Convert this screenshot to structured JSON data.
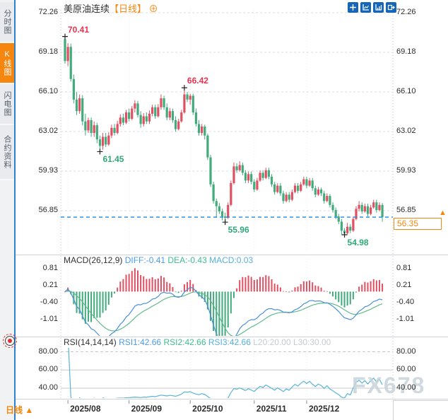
{
  "header": {
    "title": "美原油连续",
    "period_tag": "【日线】",
    "add_icon": "⊕"
  },
  "sidebar": {
    "items": [
      {
        "label": "分时图",
        "selected": false
      },
      {
        "label": "K线图",
        "selected": true
      },
      {
        "label": "闪电图",
        "selected": false
      },
      {
        "label": "合约资料",
        "selected": false
      }
    ]
  },
  "toolbar": {
    "icons": [
      "crosshair",
      "fit-scale",
      "indicator-chart",
      "pop-out"
    ]
  },
  "price_axis": {
    "labels": [
      "72.26",
      "69.18",
      "66.10",
      "63.02",
      "59.93",
      "56.85"
    ],
    "current": "56.35"
  },
  "macd_panel": {
    "title": "MACD(26,12,9)",
    "diff_label": "DIFF:-0.41",
    "dea_label": "DEA:-0.43",
    "macd_label": "MACD:0.03",
    "axis": [
      "0.81",
      "0.21",
      "-0.40",
      "-1.01"
    ]
  },
  "rsi_panel": {
    "title": "RSI(14,14,14)",
    "rsi1_label": "RSI1:42.66",
    "rsi2_label": "RSI2:42.66",
    "rsi3_label": "RSI3:42.66",
    "l20_label": "L20:20.00",
    "l30_label": "L30:30.00",
    "axis": [
      "80.00",
      "60.00",
      "40.00"
    ]
  },
  "bottom_bar": {
    "period": "日线",
    "arrow": "▲",
    "dates": [
      "2025/08",
      "2025/09",
      "2025/10",
      "2025/11",
      "2025/12"
    ]
  },
  "watermark": "FX678",
  "colors": {
    "up": "#e05062",
    "down": "#41ab7c",
    "ann_up": "#e8344e",
    "ann_down": "#2fa878",
    "diff_line": "#4a90d9",
    "dea_line": "#62bb8c",
    "rsi_line": "#58b5d8",
    "accent_orange": "#f5870f",
    "toolbar_blue": "#1565b8",
    "current_line": "#1e88e5"
  },
  "chart_data": {
    "type": "candlestick",
    "title": "美原油连续 日线 (US Crude Oil Continuous, daily)",
    "ohlc_format": [
      "open",
      "high",
      "low",
      "close"
    ],
    "y_axis": {
      "ticks": [
        72.26,
        69.18,
        66.1,
        63.02,
        59.93,
        56.85
      ],
      "min": 53.5,
      "max": 72.26
    },
    "x_axis": {
      "ticks": [
        {
          "label": "2025/08",
          "candle_index": 1
        },
        {
          "label": "2025/09",
          "candle_index": 22
        },
        {
          "label": "2025/10",
          "candle_index": 43
        },
        {
          "label": "2025/11",
          "candle_index": 65
        },
        {
          "label": "2025/12",
          "candle_index": 83
        }
      ]
    },
    "current_price": 56.35,
    "annotations": [
      {
        "text": "70.41",
        "candle_index": 0,
        "kind": "high"
      },
      {
        "text": "61.45",
        "candle_index": 12,
        "kind": "low"
      },
      {
        "text": "66.42",
        "candle_index": 41,
        "kind": "high"
      },
      {
        "text": "55.96",
        "candle_index": 55,
        "kind": "low"
      },
      {
        "text": "54.98",
        "candle_index": 96,
        "kind": "low"
      }
    ],
    "indicators": {
      "macd": {
        "params": [
          26,
          12,
          9
        ],
        "diff": -0.41,
        "dea": -0.43,
        "macd": 0.03,
        "axis_ticks": [
          0.81,
          0.21,
          -0.4,
          -1.01
        ]
      },
      "rsi": {
        "params": [
          14,
          14,
          14
        ],
        "rsi1": 42.66,
        "rsi2": 42.66,
        "rsi3": 42.66,
        "levels": {
          "l20": 20.0,
          "l30": 30.0
        },
        "axis_ticks": [
          80,
          60,
          40
        ]
      }
    },
    "candles": [
      [
        70.2,
        70.41,
        68.3,
        68.5
      ],
      [
        68.5,
        69.9,
        68.1,
        69.6
      ],
      [
        69.6,
        69.85,
        66.9,
        67.1
      ],
      [
        67.1,
        67.45,
        65.2,
        65.5
      ],
      [
        65.5,
        66.1,
        64.3,
        64.6
      ],
      [
        64.6,
        65.9,
        64.4,
        65.6
      ],
      [
        65.6,
        65.85,
        63.5,
        63.8
      ],
      [
        63.8,
        64.4,
        62.7,
        63.1
      ],
      [
        63.1,
        64.1,
        62.9,
        63.9
      ],
      [
        63.9,
        64.1,
        62.6,
        62.9
      ],
      [
        62.9,
        63.8,
        62.6,
        63.5
      ],
      [
        63.5,
        63.7,
        62.1,
        62.4
      ],
      [
        62.4,
        62.7,
        61.45,
        61.9
      ],
      [
        61.9,
        62.9,
        61.6,
        62.6
      ],
      [
        62.6,
        62.9,
        61.8,
        62.0
      ],
      [
        62.0,
        62.95,
        61.9,
        62.7
      ],
      [
        62.7,
        63.55,
        62.5,
        63.3
      ],
      [
        63.3,
        63.6,
        62.7,
        62.9
      ],
      [
        62.9,
        63.85,
        62.8,
        63.6
      ],
      [
        63.6,
        64.35,
        63.4,
        64.1
      ],
      [
        64.1,
        64.4,
        63.5,
        63.7
      ],
      [
        63.7,
        64.7,
        63.6,
        64.5
      ],
      [
        64.5,
        64.8,
        63.8,
        64.0
      ],
      [
        64.0,
        65.0,
        63.9,
        64.8
      ],
      [
        64.8,
        65.45,
        64.5,
        65.2
      ],
      [
        65.2,
        65.4,
        64.1,
        64.3
      ],
      [
        64.3,
        64.6,
        63.3,
        63.6
      ],
      [
        63.6,
        64.45,
        63.4,
        64.2
      ],
      [
        64.2,
        64.5,
        63.6,
        63.8
      ],
      [
        63.8,
        64.65,
        63.6,
        64.4
      ],
      [
        64.4,
        65.1,
        64.2,
        64.9
      ],
      [
        64.9,
        65.1,
        64.0,
        64.2
      ],
      [
        64.2,
        65.15,
        64.1,
        64.9
      ],
      [
        64.9,
        65.9,
        64.7,
        65.6
      ],
      [
        65.6,
        65.8,
        64.7,
        64.9
      ],
      [
        64.9,
        65.2,
        63.9,
        64.1
      ],
      [
        64.1,
        64.85,
        63.9,
        64.6
      ],
      [
        64.6,
        64.8,
        63.7,
        63.9
      ],
      [
        63.9,
        64.2,
        63.0,
        63.2
      ],
      [
        63.2,
        64.0,
        63.1,
        63.8
      ],
      [
        63.8,
        64.7,
        63.7,
        64.5
      ],
      [
        64.5,
        66.42,
        64.4,
        65.9
      ],
      [
        65.9,
        66.1,
        65.3,
        65.5
      ],
      [
        65.5,
        65.95,
        65.1,
        65.8
      ],
      [
        65.8,
        65.95,
        64.3,
        64.5
      ],
      [
        64.5,
        64.8,
        63.4,
        63.6
      ],
      [
        63.6,
        63.9,
        62.7,
        62.9
      ],
      [
        62.9,
        63.6,
        62.7,
        63.4
      ],
      [
        63.4,
        63.55,
        62.4,
        62.7
      ],
      [
        62.7,
        62.85,
        60.8,
        61.0
      ],
      [
        61.0,
        61.2,
        58.7,
        58.9
      ],
      [
        58.9,
        59.1,
        57.4,
        57.6
      ],
      [
        57.6,
        57.8,
        56.3,
        57.2
      ],
      [
        57.2,
        57.45,
        56.6,
        56.8
      ],
      [
        56.8,
        57.0,
        56.1,
        56.4
      ],
      [
        56.4,
        56.7,
        55.96,
        56.3
      ],
      [
        56.3,
        57.5,
        56.2,
        57.3
      ],
      [
        57.3,
        59.2,
        57.2,
        59.0
      ],
      [
        59.0,
        60.6,
        58.9,
        60.3
      ],
      [
        60.3,
        60.55,
        59.8,
        60.0
      ],
      [
        60.0,
        60.7,
        59.9,
        60.4
      ],
      [
        60.4,
        60.6,
        59.6,
        59.8
      ],
      [
        59.8,
        60.0,
        59.0,
        59.2
      ],
      [
        59.2,
        59.9,
        59.0,
        59.7
      ],
      [
        59.7,
        59.9,
        58.9,
        59.1
      ],
      [
        59.1,
        59.3,
        58.3,
        58.5
      ],
      [
        58.5,
        59.4,
        58.4,
        59.2
      ],
      [
        59.2,
        60.0,
        59.1,
        59.8
      ],
      [
        59.8,
        60.0,
        59.2,
        59.4
      ],
      [
        59.4,
        60.2,
        59.3,
        60.0
      ],
      [
        60.0,
        60.2,
        59.3,
        59.5
      ],
      [
        59.5,
        59.7,
        58.7,
        58.9
      ],
      [
        58.9,
        59.1,
        58.1,
        58.3
      ],
      [
        58.3,
        59.0,
        58.2,
        58.8
      ],
      [
        58.8,
        59.0,
        58.0,
        58.2
      ],
      [
        58.2,
        58.4,
        57.4,
        57.6
      ],
      [
        57.6,
        58.3,
        57.5,
        58.1
      ],
      [
        58.1,
        58.3,
        57.5,
        57.7
      ],
      [
        57.7,
        58.5,
        57.6,
        58.3
      ],
      [
        58.3,
        59.0,
        58.2,
        58.8
      ],
      [
        58.8,
        59.0,
        58.2,
        58.4
      ],
      [
        58.4,
        59.1,
        58.3,
        58.9
      ],
      [
        58.9,
        59.5,
        58.8,
        59.3
      ],
      [
        59.3,
        59.5,
        58.6,
        58.8
      ],
      [
        58.8,
        59.4,
        58.7,
        59.2
      ],
      [
        59.2,
        59.4,
        58.4,
        58.6
      ],
      [
        58.6,
        58.8,
        57.9,
        58.1
      ],
      [
        58.1,
        58.7,
        58.0,
        58.5
      ],
      [
        58.5,
        58.65,
        58.0,
        58.2
      ],
      [
        58.2,
        58.4,
        57.4,
        57.6
      ],
      [
        57.6,
        58.2,
        57.5,
        58.0
      ],
      [
        58.0,
        58.15,
        57.1,
        57.3
      ],
      [
        57.3,
        57.5,
        56.7,
        56.9
      ],
      [
        56.9,
        57.1,
        56.2,
        56.4
      ],
      [
        56.4,
        56.6,
        55.8,
        56.0
      ],
      [
        56.0,
        56.2,
        55.0,
        55.3
      ],
      [
        55.3,
        55.5,
        54.98,
        55.1
      ],
      [
        55.1,
        55.9,
        55.0,
        55.6
      ],
      [
        55.6,
        55.8,
        55.1,
        55.3
      ],
      [
        55.3,
        56.4,
        55.2,
        56.2
      ],
      [
        56.2,
        57.2,
        56.1,
        57.0
      ],
      [
        57.0,
        57.6,
        56.8,
        57.3
      ],
      [
        57.3,
        57.5,
        56.6,
        56.8
      ],
      [
        56.8,
        57.4,
        56.7,
        57.2
      ],
      [
        57.2,
        57.4,
        56.4,
        56.6
      ],
      [
        56.6,
        57.3,
        56.5,
        57.1
      ],
      [
        57.1,
        57.7,
        57.0,
        57.5
      ],
      [
        57.5,
        57.7,
        56.7,
        56.9
      ],
      [
        56.9,
        57.5,
        56.8,
        57.3
      ],
      [
        57.3,
        57.45,
        56.0,
        56.35
      ]
    ]
  }
}
